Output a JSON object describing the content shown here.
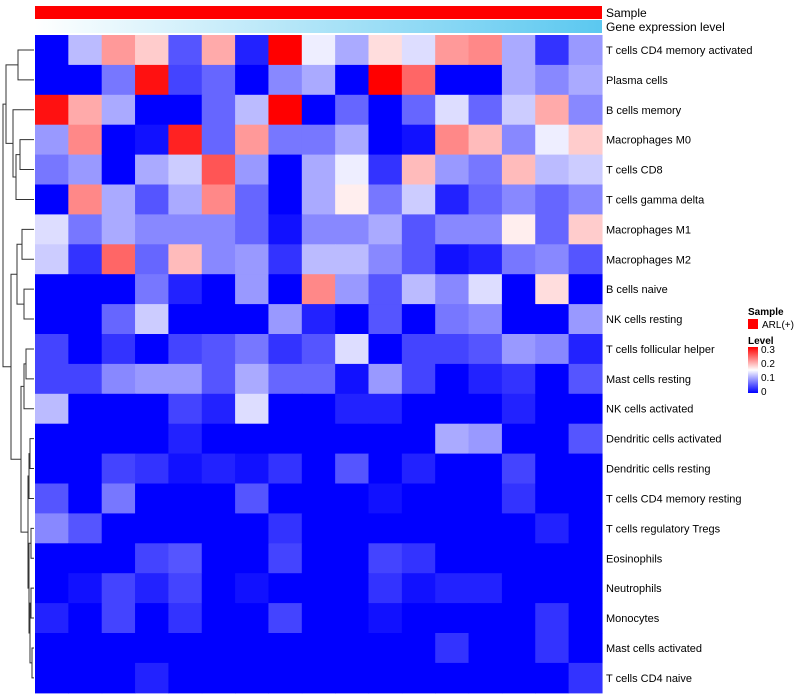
{
  "chart_data": {
    "type": "heatmap",
    "title": "",
    "color_scale": {
      "min": 0,
      "mid": 0.15,
      "max": 0.3,
      "low_color": "#0000ff",
      "mid_color": "#ffffff",
      "high_color": "#ff0000"
    },
    "annotations": {
      "sample_label": "Sample",
      "gene_label": "Gene expression level",
      "sample_color": "#ff0000",
      "gene_gradient": [
        "#ffffff",
        "#5bc8f0"
      ]
    },
    "legend": {
      "sample_title": "Sample",
      "sample_entry": "ARL(+)",
      "level_title": "Level",
      "ticks": [
        "0.3",
        "0.2",
        "0.1",
        "0"
      ]
    },
    "rows": [
      "T cells CD4 memory activated",
      "Plasma cells",
      "B cells memory",
      "Macrophages M0",
      "T cells CD8",
      "T cells gamma delta",
      "Macrophages M1",
      "Macrophages M2",
      "B cells naive",
      "NK cells resting",
      "T cells follicular helper",
      "Mast cells resting",
      "NK cells activated",
      "Dendritic cells activated",
      "Dendritic cells resting",
      "T cells CD4 memory resting",
      "T cells regulatory  Tregs",
      "Eosinophils",
      "Neutrophils",
      "Monocytes",
      "Mast cells activated",
      "T cells CD4 naive"
    ],
    "values": [
      [
        0.0,
        0.11,
        0.21,
        0.18,
        0.05,
        0.2,
        0.02,
        0.3,
        0.14,
        0.1,
        0.17,
        0.13,
        0.21,
        0.22,
        0.1,
        0.03,
        0.09
      ],
      [
        0.0,
        0.0,
        0.07,
        0.29,
        0.04,
        0.06,
        0.0,
        0.08,
        0.1,
        0.0,
        0.3,
        0.24,
        0.0,
        0.0,
        0.1,
        0.08,
        0.1
      ],
      [
        0.29,
        0.2,
        0.1,
        0.0,
        0.0,
        0.06,
        0.11,
        0.3,
        0.0,
        0.06,
        0.0,
        0.06,
        0.13,
        0.06,
        0.12,
        0.2,
        0.08
      ],
      [
        0.09,
        0.22,
        0.0,
        0.01,
        0.28,
        0.06,
        0.21,
        0.07,
        0.07,
        0.1,
        0.0,
        0.01,
        0.22,
        0.19,
        0.08,
        0.14,
        0.18
      ],
      [
        0.07,
        0.09,
        0.0,
        0.1,
        0.12,
        0.25,
        0.09,
        0.0,
        0.1,
        0.14,
        0.03,
        0.19,
        0.09,
        0.07,
        0.19,
        0.11,
        0.12
      ],
      [
        0.0,
        0.22,
        0.1,
        0.05,
        0.1,
        0.22,
        0.06,
        0.0,
        0.1,
        0.16,
        0.07,
        0.12,
        0.02,
        0.06,
        0.08,
        0.06,
        0.08
      ],
      [
        0.13,
        0.07,
        0.1,
        0.08,
        0.08,
        0.08,
        0.06,
        0.01,
        0.08,
        0.08,
        0.1,
        0.05,
        0.08,
        0.08,
        0.16,
        0.06,
        0.18
      ],
      [
        0.12,
        0.03,
        0.24,
        0.06,
        0.19,
        0.08,
        0.09,
        0.03,
        0.11,
        0.11,
        0.08,
        0.05,
        0.01,
        0.02,
        0.07,
        0.08,
        0.05
      ],
      [
        0.0,
        0.0,
        0.0,
        0.07,
        0.02,
        0.0,
        0.09,
        0.0,
        0.22,
        0.09,
        0.05,
        0.11,
        0.08,
        0.13,
        0.0,
        0.17,
        0.0
      ],
      [
        0.0,
        0.0,
        0.06,
        0.12,
        0.0,
        0.0,
        0.0,
        0.09,
        0.02,
        0.0,
        0.05,
        0.0,
        0.07,
        0.08,
        0.0,
        0.0,
        0.09
      ],
      [
        0.04,
        0.0,
        0.03,
        0.0,
        0.04,
        0.05,
        0.07,
        0.03,
        0.05,
        0.13,
        0.0,
        0.04,
        0.04,
        0.05,
        0.09,
        0.08,
        0.02
      ],
      [
        0.04,
        0.04,
        0.08,
        0.09,
        0.09,
        0.05,
        0.1,
        0.06,
        0.06,
        0.01,
        0.09,
        0.04,
        0.0,
        0.02,
        0.03,
        0.0,
        0.05
      ],
      [
        0.11,
        0.0,
        0.0,
        0.0,
        0.04,
        0.02,
        0.13,
        0.0,
        0.0,
        0.02,
        0.02,
        0.0,
        0.0,
        0.0,
        0.02,
        0.0,
        0.0
      ],
      [
        0.0,
        0.0,
        0.0,
        0.0,
        0.02,
        0.0,
        0.0,
        0.0,
        0.0,
        0.0,
        0.0,
        0.0,
        0.1,
        0.09,
        0.0,
        0.0,
        0.05
      ],
      [
        0.0,
        0.0,
        0.04,
        0.03,
        0.01,
        0.02,
        0.01,
        0.03,
        0.0,
        0.05,
        0.0,
        0.02,
        0.0,
        0.0,
        0.04,
        0.0,
        0.0
      ],
      [
        0.05,
        0.0,
        0.07,
        0.0,
        0.0,
        0.0,
        0.05,
        0.0,
        0.0,
        0.0,
        0.01,
        0.0,
        0.0,
        0.0,
        0.03,
        0.0,
        0.0
      ],
      [
        0.08,
        0.05,
        0.0,
        0.0,
        0.0,
        0.0,
        0.0,
        0.03,
        0.0,
        0.0,
        0.0,
        0.0,
        0.0,
        0.0,
        0.0,
        0.02,
        0.0
      ],
      [
        0.0,
        0.0,
        0.0,
        0.04,
        0.05,
        0.0,
        0.0,
        0.04,
        0.0,
        0.0,
        0.04,
        0.03,
        0.0,
        0.0,
        0.0,
        0.0,
        0.0
      ],
      [
        0.0,
        0.01,
        0.04,
        0.02,
        0.04,
        0.0,
        0.01,
        0.0,
        0.0,
        0.0,
        0.03,
        0.01,
        0.02,
        0.02,
        0.0,
        0.0,
        0.0
      ],
      [
        0.02,
        0.0,
        0.04,
        0.0,
        0.03,
        0.0,
        0.0,
        0.04,
        0.0,
        0.0,
        0.01,
        0.0,
        0.0,
        0.0,
        0.0,
        0.03,
        0.0
      ],
      [
        0.0,
        0.0,
        0.0,
        0.0,
        0.0,
        0.0,
        0.0,
        0.0,
        0.0,
        0.0,
        0.0,
        0.0,
        0.03,
        0.0,
        0.0,
        0.03,
        0.0
      ],
      [
        0.0,
        0.0,
        0.0,
        0.02,
        0.0,
        0.0,
        0.0,
        0.0,
        0.0,
        0.0,
        0.0,
        0.0,
        0.0,
        0.0,
        0.0,
        0.0,
        0.03
      ]
    ]
  }
}
